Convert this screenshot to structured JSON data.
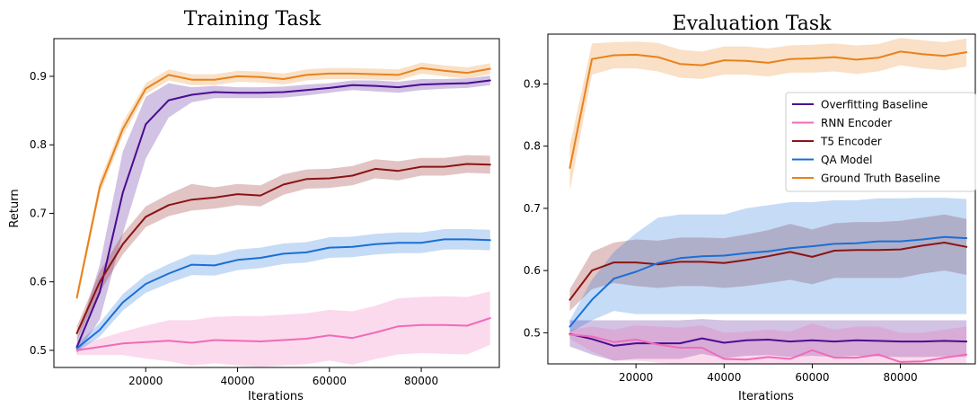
{
  "chart_data": [
    {
      "type": "line",
      "title": "Training Task",
      "xlabel": "Iterations",
      "ylabel": "Return",
      "xlim": [
        0,
        97000
      ],
      "ylim": [
        0.475,
        0.955
      ],
      "xticks": [
        20000,
        40000,
        60000,
        80000
      ],
      "yticks": [
        0.5,
        0.6,
        0.7,
        0.8,
        0.9
      ],
      "x": [
        5000,
        10000,
        15000,
        20000,
        25000,
        30000,
        35000,
        40000,
        45000,
        50000,
        55000,
        60000,
        65000,
        70000,
        75000,
        80000,
        85000,
        90000,
        95000
      ],
      "series": [
        {
          "name": "Overfitting Baseline",
          "color": "#4b0c8f",
          "values": [
            0.505,
            0.585,
            0.73,
            0.83,
            0.865,
            0.873,
            0.877,
            0.876,
            0.876,
            0.877,
            0.88,
            0.883,
            0.887,
            0.886,
            0.884,
            0.888,
            0.889,
            0.89,
            0.894
          ],
          "lower": [
            0.495,
            0.545,
            0.67,
            0.78,
            0.84,
            0.862,
            0.868,
            0.868,
            0.868,
            0.869,
            0.872,
            0.876,
            0.88,
            0.878,
            0.876,
            0.88,
            0.882,
            0.883,
            0.887
          ],
          "upper": [
            0.515,
            0.625,
            0.79,
            0.87,
            0.89,
            0.884,
            0.886,
            0.884,
            0.884,
            0.885,
            0.888,
            0.89,
            0.894,
            0.894,
            0.892,
            0.896,
            0.896,
            0.897,
            0.901
          ]
        },
        {
          "name": "RNN Encoder",
          "color": "#f06bb8",
          "values": [
            0.5,
            0.505,
            0.51,
            0.512,
            0.514,
            0.511,
            0.515,
            0.514,
            0.513,
            0.515,
            0.517,
            0.522,
            0.518,
            0.526,
            0.535,
            0.537,
            0.537,
            0.536,
            0.547
          ],
          "lower": [
            0.493,
            0.493,
            0.493,
            0.488,
            0.484,
            0.478,
            0.481,
            0.478,
            0.476,
            0.478,
            0.48,
            0.485,
            0.479,
            0.487,
            0.494,
            0.496,
            0.495,
            0.494,
            0.508
          ],
          "upper": [
            0.507,
            0.517,
            0.527,
            0.536,
            0.544,
            0.544,
            0.549,
            0.55,
            0.55,
            0.552,
            0.554,
            0.559,
            0.557,
            0.565,
            0.576,
            0.578,
            0.579,
            0.578,
            0.586
          ]
        },
        {
          "name": "T5 Encoder",
          "color": "#8b1414",
          "values": [
            0.525,
            0.6,
            0.655,
            0.695,
            0.712,
            0.72,
            0.723,
            0.728,
            0.726,
            0.742,
            0.75,
            0.751,
            0.755,
            0.765,
            0.762,
            0.768,
            0.768,
            0.772,
            0.771
          ],
          "lower": [
            0.515,
            0.585,
            0.64,
            0.68,
            0.696,
            0.704,
            0.707,
            0.712,
            0.71,
            0.727,
            0.736,
            0.737,
            0.741,
            0.751,
            0.748,
            0.755,
            0.755,
            0.759,
            0.758
          ],
          "upper": [
            0.535,
            0.615,
            0.67,
            0.71,
            0.728,
            0.743,
            0.738,
            0.743,
            0.741,
            0.757,
            0.764,
            0.765,
            0.769,
            0.779,
            0.776,
            0.781,
            0.781,
            0.785,
            0.784
          ]
        },
        {
          "name": "QA Model",
          "color": "#1a6fd6",
          "values": [
            0.503,
            0.53,
            0.57,
            0.597,
            0.612,
            0.625,
            0.624,
            0.632,
            0.635,
            0.641,
            0.643,
            0.65,
            0.651,
            0.655,
            0.657,
            0.657,
            0.662,
            0.662,
            0.661
          ],
          "lower": [
            0.497,
            0.52,
            0.558,
            0.584,
            0.598,
            0.61,
            0.609,
            0.617,
            0.62,
            0.626,
            0.628,
            0.635,
            0.636,
            0.64,
            0.642,
            0.642,
            0.647,
            0.647,
            0.646
          ],
          "upper": [
            0.509,
            0.54,
            0.582,
            0.61,
            0.626,
            0.64,
            0.639,
            0.647,
            0.65,
            0.656,
            0.658,
            0.665,
            0.666,
            0.67,
            0.672,
            0.672,
            0.677,
            0.677,
            0.676
          ]
        },
        {
          "name": "Ground Truth Baseline",
          "color": "#e8821c",
          "values": [
            0.577,
            0.738,
            0.823,
            0.882,
            0.902,
            0.895,
            0.895,
            0.9,
            0.899,
            0.896,
            0.902,
            0.904,
            0.904,
            0.903,
            0.902,
            0.912,
            0.908,
            0.905,
            0.911
          ],
          "lower": [
            0.569,
            0.728,
            0.813,
            0.874,
            0.894,
            0.887,
            0.887,
            0.892,
            0.891,
            0.888,
            0.894,
            0.896,
            0.896,
            0.895,
            0.894,
            0.904,
            0.9,
            0.897,
            0.903
          ],
          "upper": [
            0.585,
            0.748,
            0.833,
            0.89,
            0.91,
            0.903,
            0.903,
            0.908,
            0.907,
            0.904,
            0.91,
            0.912,
            0.912,
            0.911,
            0.91,
            0.92,
            0.916,
            0.913,
            0.919
          ]
        }
      ]
    },
    {
      "type": "line",
      "title": "Evaluation Task",
      "xlabel": "Iterations",
      "ylabel": "",
      "xlim": [
        0,
        97000
      ],
      "ylim": [
        0.45,
        0.98
      ],
      "xticks": [
        20000,
        40000,
        60000,
        80000
      ],
      "yticks": [
        0.5,
        0.6,
        0.7,
        0.8,
        0.9
      ],
      "legend": "right",
      "x": [
        5000,
        10000,
        15000,
        20000,
        25000,
        30000,
        35000,
        40000,
        45000,
        50000,
        55000,
        60000,
        65000,
        70000,
        75000,
        80000,
        85000,
        90000,
        95000
      ],
      "series": [
        {
          "name": "Overfitting Baseline",
          "color": "#4b0c8f",
          "values": [
            0.498,
            0.49,
            0.479,
            0.483,
            0.483,
            0.483,
            0.491,
            0.484,
            0.488,
            0.489,
            0.486,
            0.488,
            0.486,
            0.488,
            0.487,
            0.486,
            0.486,
            0.487,
            0.486
          ],
          "lower": [
            0.478,
            0.465,
            0.455,
            0.458,
            0.458,
            0.458,
            0.466,
            0.459,
            0.463,
            0.464,
            0.461,
            0.463,
            0.461,
            0.463,
            0.462,
            0.461,
            0.461,
            0.462,
            0.461
          ],
          "upper": [
            0.52,
            0.52,
            0.52,
            0.52,
            0.52,
            0.52,
            0.522,
            0.52,
            0.52,
            0.52,
            0.52,
            0.52,
            0.52,
            0.52,
            0.52,
            0.52,
            0.52,
            0.52,
            0.52
          ]
        },
        {
          "name": "RNN Encoder",
          "color": "#f06bb8",
          "values": [
            0.497,
            0.494,
            0.485,
            0.489,
            0.481,
            0.476,
            0.476,
            0.458,
            0.457,
            0.461,
            0.458,
            0.472,
            0.46,
            0.46,
            0.465,
            0.453,
            0.454,
            0.46,
            0.465
          ],
          "lower": [
            0.49,
            0.47,
            0.455,
            0.455,
            0.452,
            0.45,
            0.45,
            0.45,
            0.45,
            0.45,
            0.45,
            0.45,
            0.45,
            0.45,
            0.45,
            0.45,
            0.45,
            0.45,
            0.45
          ],
          "upper": [
            0.505,
            0.51,
            0.505,
            0.512,
            0.51,
            0.508,
            0.512,
            0.5,
            0.502,
            0.505,
            0.502,
            0.515,
            0.505,
            0.51,
            0.51,
            0.5,
            0.5,
            0.505,
            0.51
          ]
        },
        {
          "name": "T5 Encoder",
          "color": "#8b1414",
          "values": [
            0.553,
            0.6,
            0.613,
            0.613,
            0.61,
            0.614,
            0.614,
            0.612,
            0.617,
            0.623,
            0.63,
            0.622,
            0.632,
            0.633,
            0.633,
            0.634,
            0.64,
            0.645,
            0.638
          ],
          "lower": [
            0.535,
            0.57,
            0.58,
            0.575,
            0.572,
            0.575,
            0.575,
            0.572,
            0.575,
            0.58,
            0.585,
            0.578,
            0.588,
            0.588,
            0.588,
            0.588,
            0.595,
            0.6,
            0.593
          ],
          "upper": [
            0.57,
            0.63,
            0.645,
            0.65,
            0.648,
            0.653,
            0.653,
            0.652,
            0.658,
            0.665,
            0.675,
            0.666,
            0.676,
            0.678,
            0.678,
            0.68,
            0.685,
            0.69,
            0.683
          ]
        },
        {
          "name": "QA Model",
          "color": "#1a6fd6",
          "values": [
            0.51,
            0.553,
            0.587,
            0.598,
            0.612,
            0.62,
            0.623,
            0.624,
            0.628,
            0.631,
            0.636,
            0.639,
            0.643,
            0.644,
            0.647,
            0.647,
            0.65,
            0.654,
            0.652
          ],
          "lower": [
            0.5,
            0.52,
            0.535,
            0.53,
            0.53,
            0.53,
            0.53,
            0.53,
            0.53,
            0.53,
            0.53,
            0.53,
            0.53,
            0.53,
            0.53,
            0.53,
            0.53,
            0.53,
            0.53
          ],
          "upper": [
            0.52,
            0.585,
            0.63,
            0.66,
            0.685,
            0.69,
            0.69,
            0.69,
            0.7,
            0.705,
            0.71,
            0.71,
            0.713,
            0.713,
            0.716,
            0.716,
            0.717,
            0.717,
            0.715
          ]
        },
        {
          "name": "Ground Truth Baseline",
          "color": "#e8821c",
          "values": [
            0.765,
            0.94,
            0.946,
            0.947,
            0.943,
            0.932,
            0.93,
            0.938,
            0.937,
            0.934,
            0.94,
            0.941,
            0.943,
            0.939,
            0.942,
            0.952,
            0.948,
            0.945,
            0.951
          ],
          "lower": [
            0.728,
            0.915,
            0.925,
            0.925,
            0.92,
            0.91,
            0.908,
            0.915,
            0.915,
            0.912,
            0.918,
            0.918,
            0.92,
            0.916,
            0.92,
            0.93,
            0.925,
            0.922,
            0.928
          ],
          "upper": [
            0.8,
            0.965,
            0.967,
            0.968,
            0.966,
            0.955,
            0.952,
            0.96,
            0.96,
            0.957,
            0.962,
            0.963,
            0.965,
            0.962,
            0.964,
            0.974,
            0.97,
            0.967,
            0.973
          ]
        }
      ]
    }
  ]
}
